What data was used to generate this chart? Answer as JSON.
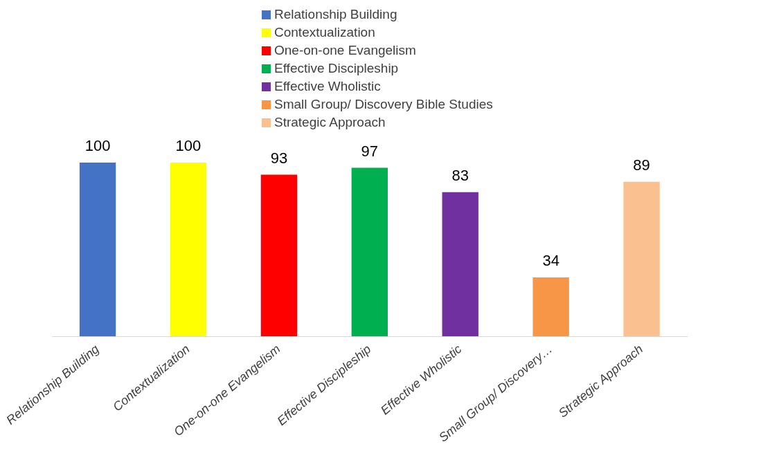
{
  "chart_data": {
    "type": "bar",
    "categories": [
      "Relationship Building",
      "Contextualization",
      "One-on-one Evangelism",
      "Effective Discipleship",
      "Effective Wholistic",
      "Small Group/ Discovery…",
      "Strategic Approach"
    ],
    "series": [
      {
        "name": "Relationship Building",
        "color": "#4472c4",
        "values": [
          100,
          null,
          null,
          null,
          null,
          null,
          null
        ]
      },
      {
        "name": "Contextualization",
        "color": "#ffff00",
        "values": [
          null,
          100,
          null,
          null,
          null,
          null,
          null
        ]
      },
      {
        "name": "One-on-one Evangelism",
        "color": "#ff0000",
        "values": [
          null,
          null,
          93,
          null,
          null,
          null,
          null
        ]
      },
      {
        "name": "Effective Discipleship",
        "color": "#00b050",
        "values": [
          null,
          null,
          null,
          97,
          null,
          null,
          null
        ]
      },
      {
        "name": "Effective Wholistic",
        "color": "#7030a0",
        "values": [
          null,
          null,
          null,
          null,
          83,
          null,
          null
        ]
      },
      {
        "name": "Small Group/ Discovery Bible Studies",
        "color": "#f79646",
        "values": [
          null,
          null,
          null,
          null,
          null,
          34,
          null
        ]
      },
      {
        "name": "Strategic Approach",
        "color": "#fac090",
        "values": [
          null,
          null,
          null,
          null,
          null,
          null,
          89
        ]
      }
    ],
    "data_labels": true,
    "grid": false,
    "legend": "top"
  }
}
